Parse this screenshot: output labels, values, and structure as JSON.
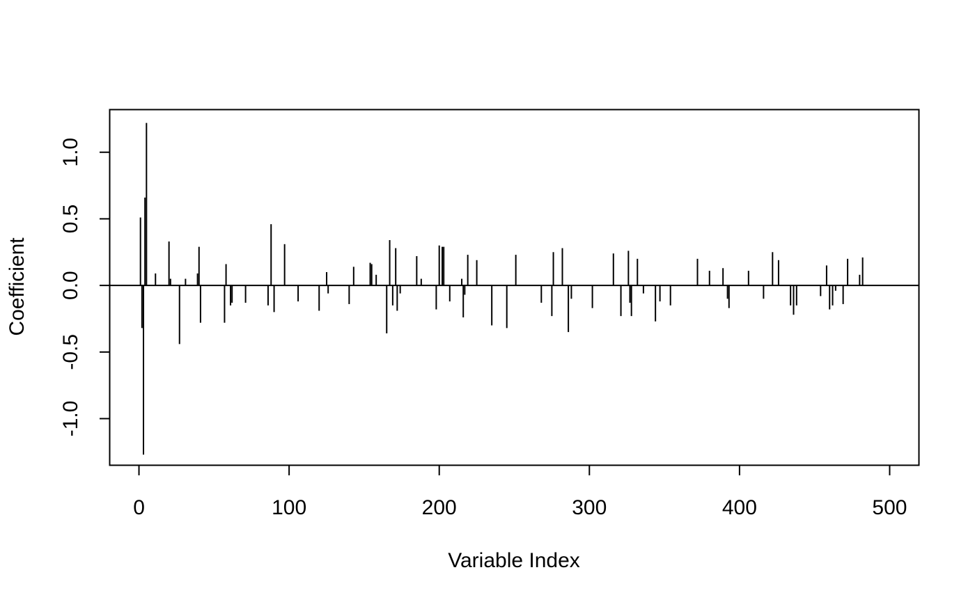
{
  "chart_data": {
    "type": "bar",
    "title": "",
    "xlabel": "Variable Index",
    "ylabel": "Coefficient",
    "xlim": [
      -19.5,
      519.5
    ],
    "ylim": [
      -1.35,
      1.32
    ],
    "xticks": [
      0,
      100,
      200,
      300,
      400,
      500
    ],
    "yticks": [
      -1.0,
      -0.5,
      0.0,
      0.5,
      1.0
    ],
    "xtick_labels": [
      "0",
      "100",
      "200",
      "300",
      "400",
      "500"
    ],
    "ytick_labels": [
      "-1.0",
      "-0.5",
      "0.0",
      "0.5",
      "1.0"
    ],
    "reference_line": 0,
    "grid": false,
    "series": [
      {
        "x": [
          1,
          2,
          3,
          4,
          5,
          11,
          20,
          21,
          27,
          31,
          39,
          40,
          41,
          57,
          58,
          61,
          62,
          71,
          86,
          88,
          90,
          97,
          106,
          120,
          125,
          126,
          140,
          143,
          154,
          155,
          158,
          165,
          167,
          169,
          171,
          172,
          174,
          185,
          188,
          198,
          200,
          202,
          203,
          207,
          215,
          216,
          217,
          219,
          225,
          235,
          245,
          251,
          268,
          275,
          276,
          282,
          286,
          288,
          302,
          316,
          321,
          326,
          327,
          328,
          332,
          336,
          344,
          347,
          354,
          372,
          380,
          389,
          392,
          393,
          406,
          416,
          422,
          426,
          434,
          436,
          438,
          454,
          458,
          460,
          462,
          464,
          469,
          472,
          480,
          482
        ],
        "values": [
          0.51,
          -0.32,
          -1.27,
          0.66,
          1.22,
          0.09,
          0.33,
          0.05,
          -0.44,
          0.05,
          0.09,
          0.29,
          -0.28,
          -0.28,
          0.16,
          -0.15,
          -0.13,
          -0.13,
          -0.15,
          0.46,
          -0.2,
          0.31,
          -0.12,
          -0.19,
          0.1,
          -0.06,
          -0.14,
          0.14,
          0.17,
          0.16,
          0.08,
          -0.36,
          0.34,
          -0.15,
          0.28,
          -0.19,
          -0.06,
          0.22,
          0.05,
          -0.18,
          0.3,
          0.29,
          0.29,
          -0.12,
          0.05,
          -0.24,
          -0.07,
          0.23,
          0.19,
          -0.3,
          -0.32,
          0.23,
          -0.13,
          -0.23,
          0.25,
          0.28,
          -0.35,
          -0.1,
          -0.17,
          0.24,
          -0.23,
          0.26,
          -0.13,
          -0.23,
          0.2,
          -0.06,
          -0.27,
          -0.12,
          -0.15,
          0.2,
          0.11,
          0.13,
          -0.1,
          -0.17,
          0.11,
          -0.1,
          0.25,
          0.19,
          -0.15,
          -0.22,
          -0.15,
          -0.08,
          0.15,
          -0.18,
          -0.15,
          -0.04,
          -0.14,
          0.2,
          0.08,
          0.21
        ]
      }
    ]
  }
}
